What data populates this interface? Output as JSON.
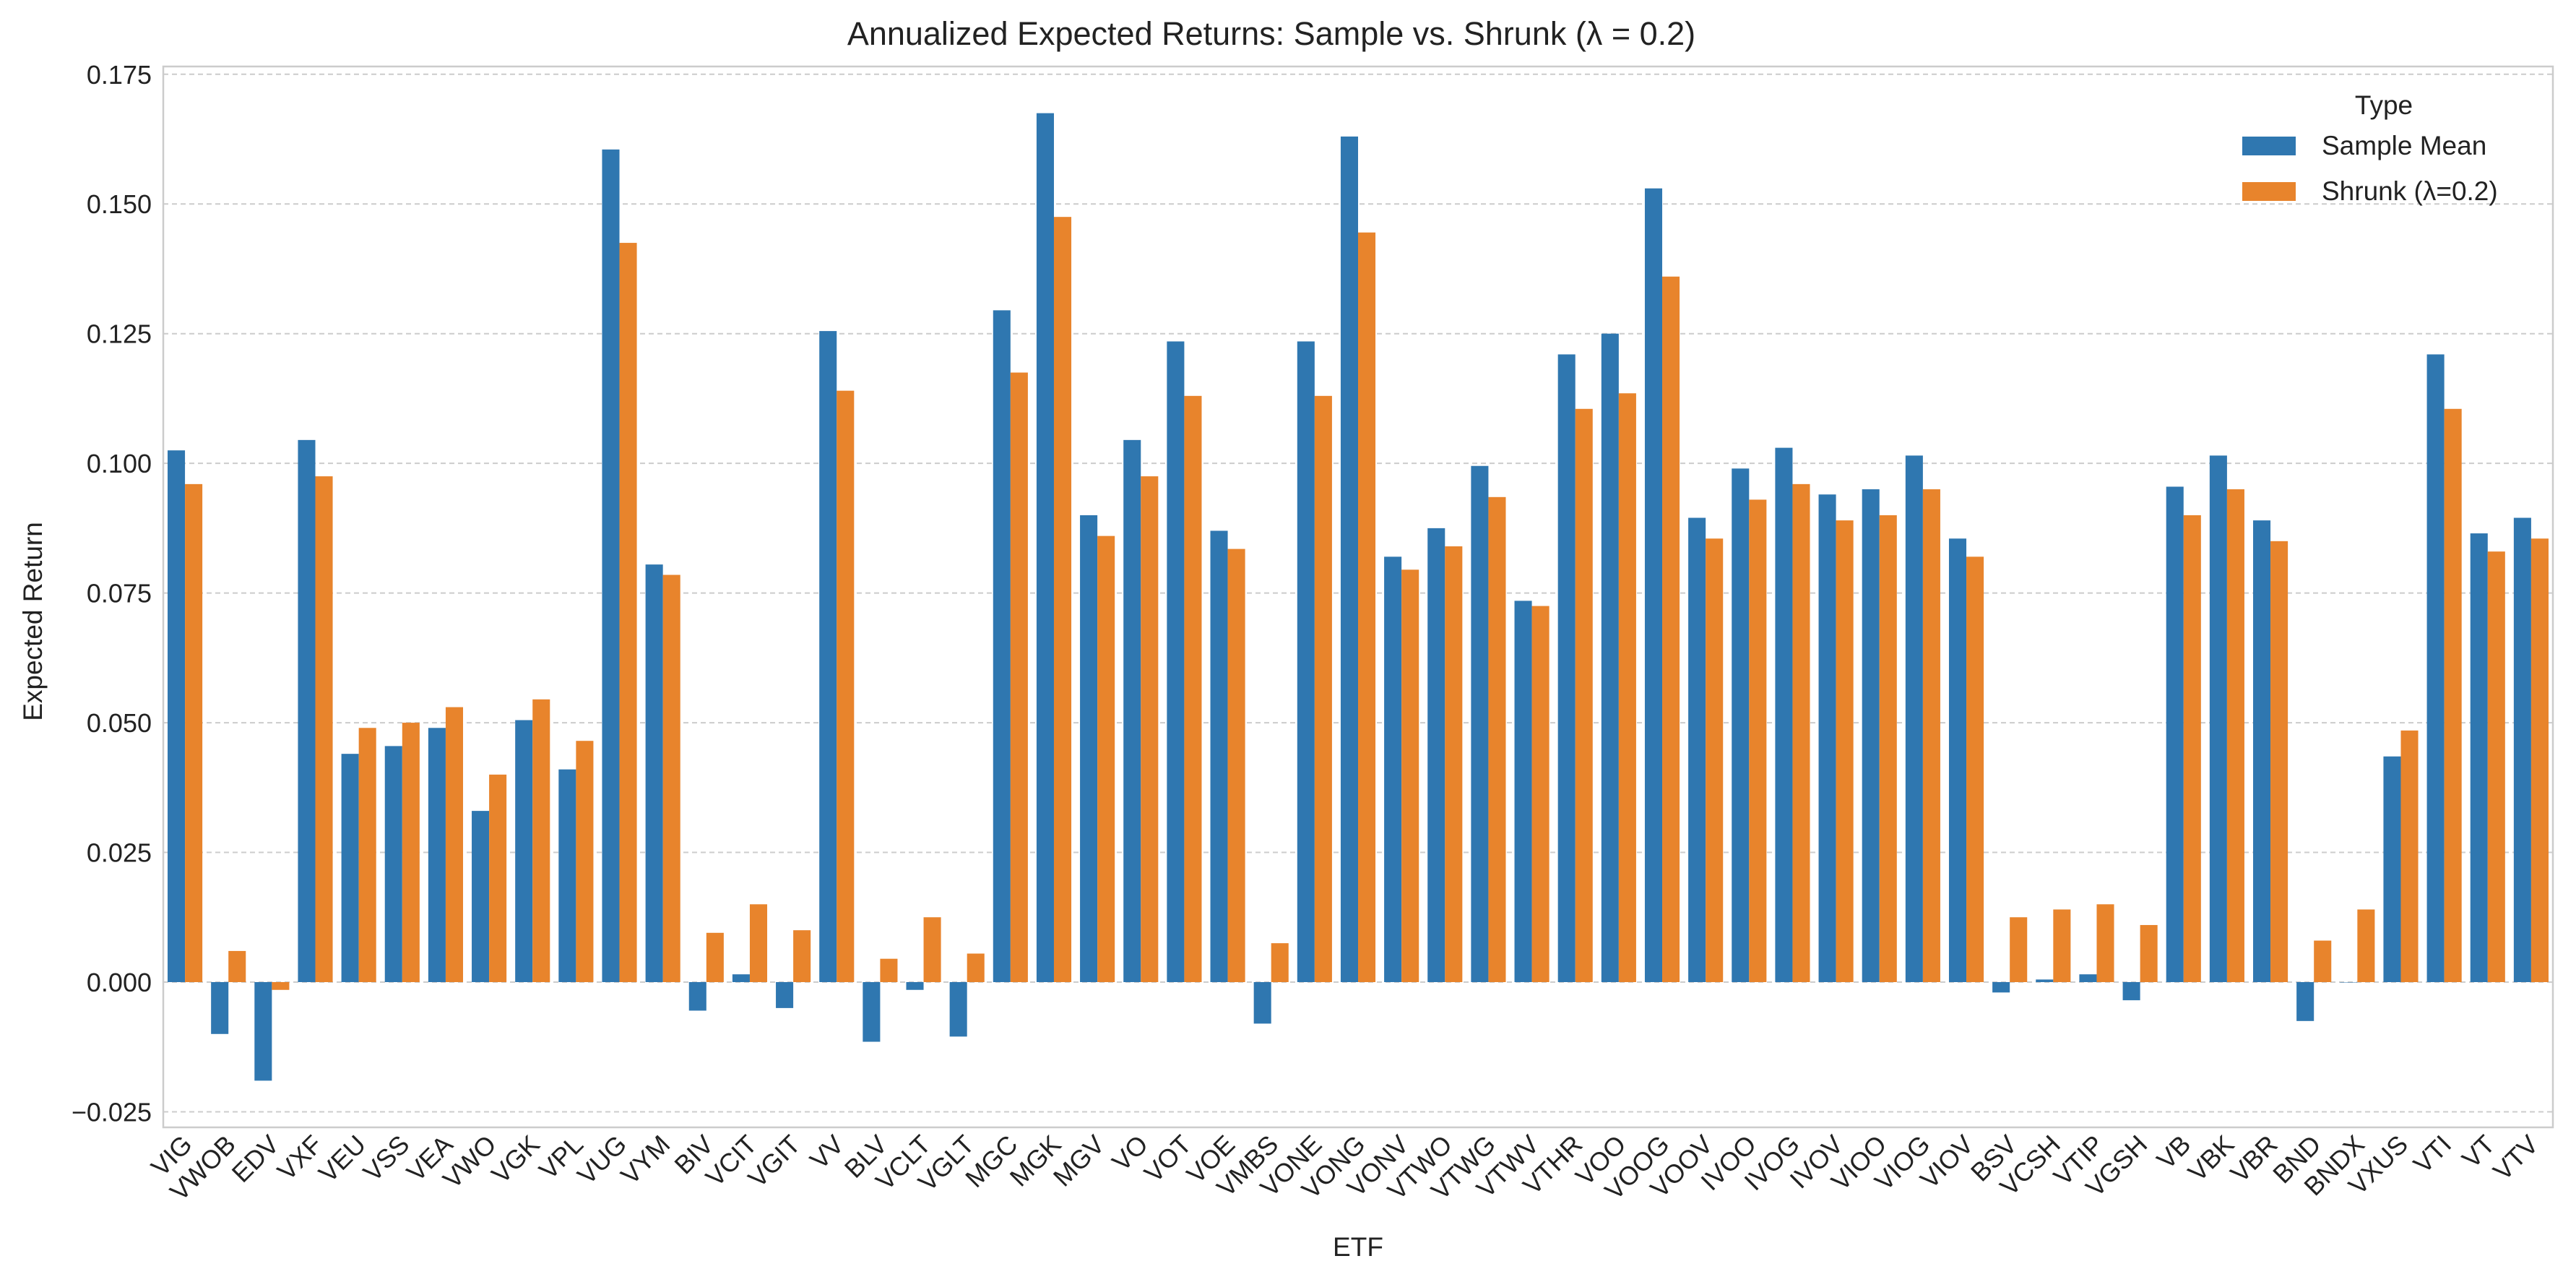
{
  "chart_data": {
    "type": "bar",
    "title": "Annualized Expected Returns: Sample vs. Shrunk (λ = 0.2)",
    "xlabel": "ETF",
    "ylabel": "Expected Return",
    "ylim": [
      -0.028,
      0.1765
    ],
    "yticks": [
      -0.025,
      0.0,
      0.025,
      0.05,
      0.075,
      0.1,
      0.125,
      0.15,
      0.175
    ],
    "ytick_labels": [
      "−0.025",
      "0.000",
      "0.025",
      "0.050",
      "0.075",
      "0.100",
      "0.125",
      "0.150",
      "0.175"
    ],
    "grid": true,
    "legend": {
      "title": "Type",
      "position": "top-right"
    },
    "categories": [
      "VIG",
      "VWOB",
      "EDV",
      "VXF",
      "VEU",
      "VSS",
      "VEA",
      "VWO",
      "VGK",
      "VPL",
      "VUG",
      "VYM",
      "BIV",
      "VCIT",
      "VGIT",
      "VV",
      "BLV",
      "VCLT",
      "VGLT",
      "MGC",
      "MGK",
      "MGV",
      "VO",
      "VOT",
      "VOE",
      "VMBS",
      "VONE",
      "VONG",
      "VONV",
      "VTWO",
      "VTWG",
      "VTWV",
      "VTHR",
      "VOO",
      "VOOG",
      "VOOV",
      "IVOO",
      "IVOG",
      "IVOV",
      "VIOO",
      "VIOG",
      "VIOV",
      "BSV",
      "VCSH",
      "VTIP",
      "VGSH",
      "VB",
      "VBK",
      "VBR",
      "BND",
      "BNDX",
      "VXUS",
      "VTI",
      "VT",
      "VTV"
    ],
    "series": [
      {
        "name": "Sample Mean",
        "color": "#2f77b0",
        "values": [
          0.1025,
          -0.01,
          -0.019,
          0.1045,
          0.044,
          0.0455,
          0.049,
          0.033,
          0.0505,
          0.041,
          0.1605,
          0.0805,
          -0.0055,
          0.0015,
          -0.005,
          0.1255,
          -0.0115,
          -0.0015,
          -0.0105,
          0.1295,
          0.1675,
          0.09,
          0.1045,
          0.1235,
          0.087,
          -0.008,
          0.1235,
          0.163,
          0.082,
          0.0875,
          0.0995,
          0.0735,
          0.121,
          0.125,
          0.153,
          0.0895,
          0.099,
          0.103,
          0.094,
          0.095,
          0.1015,
          0.0855,
          -0.002,
          0.0005,
          0.0015,
          -0.0035,
          0.0955,
          0.1015,
          0.089,
          -0.0075,
          0.0,
          0.0435,
          0.121,
          0.0865,
          0.0895
        ]
      },
      {
        "name": "Shrunk (λ=0.2)",
        "color": "#e8842c",
        "values": [
          0.096,
          0.006,
          -0.0015,
          0.0975,
          0.049,
          0.05,
          0.053,
          0.04,
          0.0545,
          0.0465,
          0.1425,
          0.0785,
          0.0095,
          0.015,
          0.01,
          0.114,
          0.0045,
          0.0125,
          0.0055,
          0.1175,
          0.1475,
          0.086,
          0.0975,
          0.113,
          0.0835,
          0.0075,
          0.113,
          0.1445,
          0.0795,
          0.084,
          0.0935,
          0.0725,
          0.1105,
          0.1135,
          0.136,
          0.0855,
          0.093,
          0.096,
          0.089,
          0.09,
          0.095,
          0.082,
          0.0125,
          0.014,
          0.015,
          0.011,
          0.09,
          0.095,
          0.085,
          0.008,
          0.014,
          0.0485,
          0.1105,
          0.083,
          0.0855
        ]
      }
    ]
  }
}
